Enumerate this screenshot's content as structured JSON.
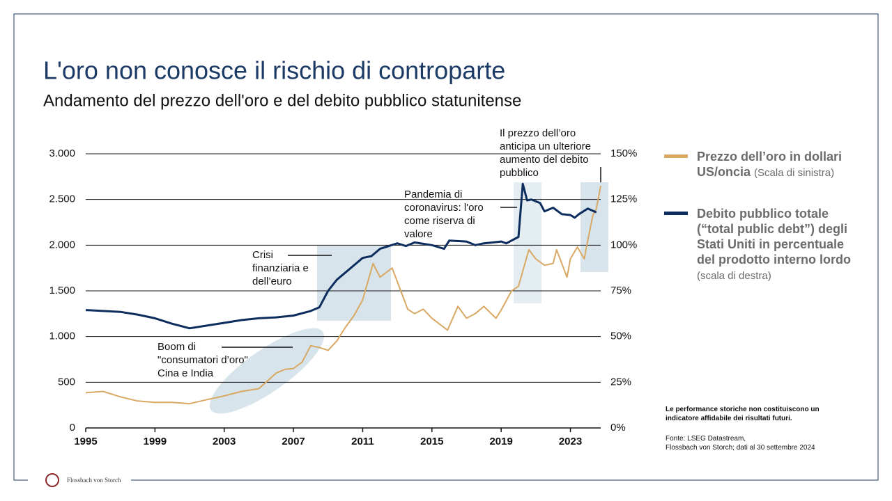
{
  "title": "L'oro non conosce il rischio di controparte",
  "subtitle": "Andamento del prezzo dell'oro e del debito pubblico statunitense",
  "chart_data": {
    "type": "line",
    "xlim": [
      1995,
      2024.75
    ],
    "xticks": [
      1995,
      1999,
      2003,
      2007,
      2011,
      2015,
      2019,
      2023
    ],
    "ylim": [
      0,
      3000
    ],
    "yticks": [
      0,
      500,
      {
        "value": 1000,
        "label": "1.000"
      },
      {
        "value": 1500,
        "label": "1.500"
      },
      {
        "value": 2000,
        "label": "2.000"
      },
      {
        "value": 2500,
        "label": "2.500"
      },
      {
        "value": 3000,
        "label": "3.000"
      }
    ],
    "y2lim": [
      0,
      150
    ],
    "y2ticks": [
      {
        "value": 0,
        "label": "0%"
      },
      {
        "value": 25,
        "label": "25%"
      },
      {
        "value": 50,
        "label": "50%"
      },
      {
        "value": 75,
        "label": "75%"
      },
      {
        "value": 100,
        "label": "100%"
      },
      {
        "value": 125,
        "label": "125%"
      },
      {
        "value": 150,
        "label": "150%"
      }
    ],
    "grid": true,
    "series": [
      {
        "name": "Prezzo dell’oro in dollari US/oncia",
        "note": "(Scala di sinistra)",
        "color": "#d9a862",
        "x": [
          1995,
          1996,
          1997,
          1998,
          1999,
          2000,
          2001,
          2002,
          2003,
          2004,
          2005,
          2006,
          2006.5,
          2007,
          2007.5,
          2008,
          2008.5,
          2009,
          2009.5,
          2010,
          2010.5,
          2011,
          2011.6,
          2012,
          2012.7,
          2013.3,
          2013.6,
          2014,
          2014.5,
          2015,
          2015.9,
          2016.5,
          2017,
          2017.5,
          2018,
          2018.7,
          2019,
          2019.6,
          2020,
          2020.6,
          2021,
          2021.5,
          2022,
          2022.2,
          2022.8,
          2023,
          2023.4,
          2023.8,
          2024,
          2024.3,
          2024.5,
          2024.75
        ],
        "values": [
          385,
          400,
          340,
          295,
          280,
          280,
          265,
          310,
          350,
          400,
          430,
          600,
          640,
          650,
          720,
          900,
          880,
          850,
          950,
          1100,
          1230,
          1400,
          1800,
          1650,
          1750,
          1450,
          1300,
          1250,
          1300,
          1200,
          1070,
          1330,
          1200,
          1250,
          1330,
          1200,
          1290,
          1500,
          1550,
          1950,
          1850,
          1780,
          1800,
          1950,
          1650,
          1850,
          1980,
          1850,
          2050,
          2330,
          2400,
          2650
        ]
      },
      {
        "name": "Debito pubblico totale (“total public debt”) degli Stati Uniti in percentuale del prodotto interno lordo",
        "note": "(scala di destra)",
        "color": "#0d2d5e",
        "axis": "y2",
        "x": [
          1995,
          1996,
          1997,
          1998,
          1999,
          2000,
          2001,
          2002,
          2003,
          2004,
          2005,
          2006,
          2007,
          2008,
          2008.5,
          2009,
          2009.5,
          2010,
          2010.5,
          2011,
          2011.5,
          2012,
          2013,
          2013.5,
          2014,
          2015,
          2015.7,
          2016,
          2017,
          2017.5,
          2018,
          2019,
          2019.3,
          2020,
          2020.25,
          2020.5,
          2020.75,
          2021.25,
          2021.5,
          2022,
          2022.5,
          2023,
          2023.25,
          2023.5,
          2024,
          2024.5
        ],
        "values": [
          64.5,
          64,
          63.5,
          62,
          60,
          57,
          54.5,
          56,
          57.5,
          59,
          60,
          60.5,
          61.5,
          64,
          66,
          75,
          81,
          85,
          89,
          93,
          94,
          98,
          101,
          99.5,
          101.5,
          100,
          98,
          102.5,
          102,
          100,
          101,
          102,
          101,
          104.5,
          133.5,
          124.5,
          125,
          123,
          118.5,
          120.5,
          117,
          116.5,
          115,
          117,
          120,
          118
        ]
      }
    ],
    "annotations": [
      [
        "Boom di",
        "\"consumatori d’oro\"",
        "Cina e India"
      ],
      [
        "Crisi",
        "finanziaria e",
        "dell’euro"
      ],
      [
        "Pandemia di",
        "coronavirus: l'oro",
        "come riserva di",
        "valore"
      ],
      [
        "Il prezzo dell’oro",
        "anticipa un ulteriore",
        "aumento del debito",
        "pubblico"
      ]
    ]
  },
  "disclaimer": "Le performance storiche non costituiscono un indicatore affidabile dei risultati futuri.",
  "source": [
    "Fonte: LSEG Datastream,",
    "Flossbach von Storch; dati al 30 settembre 2024"
  ],
  "brand": "Flossbach von Storch"
}
